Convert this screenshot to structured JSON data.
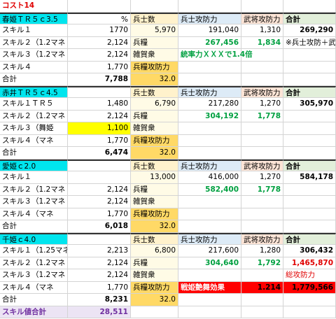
{
  "sheet": {
    "rows": [
      [
        "コスト14",
        null,
        null,
        null,
        null,
        null
      ],
      [
        "春姫ＴＲ５ｃ3.5",
        "%",
        "兵士数",
        "兵士攻防力",
        "武将攻防力",
        "合計"
      ],
      [
        "スキル１",
        "1770",
        "5,970",
        "191,040",
        "1,310",
        "269,290"
      ],
      [
        "スキル２（1.2マネ",
        "2,124",
        "兵糧",
        "267,456",
        "1,834",
        "※兵士攻防＋武"
      ],
      [
        "スキル３（1.2マネ",
        "2,124",
        "雑賀衆",
        "統率力ＸＸＸで1.4倍",
        null,
        null
      ],
      [
        "スキル４",
        "1,770",
        "兵糧攻防力",
        null,
        null,
        null
      ],
      [
        "合計",
        "7,788",
        "32.0",
        null,
        null,
        null
      ],
      [
        "赤井ＴＲ５ｃ4.5",
        null,
        "兵士数",
        "兵士攻防力",
        "武将攻防力",
        "合計"
      ],
      [
        "スキル１ＴＲ５",
        "1,480",
        "6,790",
        "217,280",
        "1,270",
        "305,970"
      ],
      [
        "スキル２（1.2マネ",
        "2,124",
        "兵糧",
        "304,192",
        "1,778",
        null
      ],
      [
        "スキル３（舞姫",
        "1,100",
        "雑賀衆",
        null,
        null,
        null
      ],
      [
        "スキル４（マネ",
        "1,770",
        "兵糧攻防力",
        null,
        null,
        null
      ],
      [
        "合計",
        "6,474",
        "32.0",
        null,
        null,
        null
      ],
      [
        "愛姫ｃ2.0",
        null,
        "兵士数",
        "兵士攻防力",
        "武将攻防力",
        "合計"
      ],
      [
        "スキル１",
        null,
        "13,000",
        "416,000",
        "1,270",
        "584,178"
      ],
      [
        "スキル２（1.2マネ",
        "2,124",
        "兵糧",
        "582,400",
        "1,778",
        null
      ],
      [
        "スキル３（1.2マネ",
        "2,124",
        "雑賀衆",
        null,
        null,
        null
      ],
      [
        "スキル４（マネ",
        "1,770",
        "兵糧攻防力",
        null,
        null,
        null
      ],
      [
        "合計",
        "6,018",
        "32.0",
        null,
        null,
        null
      ],
      [
        "千姫ｃ4.0",
        null,
        "兵士数",
        "兵士攻防力",
        "武将攻防力",
        "合計"
      ],
      [
        "スキル１（1.25マネ",
        "2,213",
        "6,800",
        "217,600",
        "1,280",
        "306,432"
      ],
      [
        "スキル２（1.2マネ",
        "2,124",
        "兵糧",
        "304,640",
        "1,792",
        "1,465,870"
      ],
      [
        "スキル３（1.2マネ",
        "2,124",
        "雑賀衆",
        null,
        null,
        "総攻防力"
      ],
      [
        "スキル４（マネ",
        "1,770",
        "兵糧攻防力",
        "戦姫艶舞効果",
        "1.214",
        "1,779,566"
      ],
      [
        "合計",
        "8,231",
        "32.0",
        null,
        null,
        null
      ],
      [
        "スキル値合計",
        "28,511",
        null,
        null,
        null,
        null
      ]
    ]
  }
}
